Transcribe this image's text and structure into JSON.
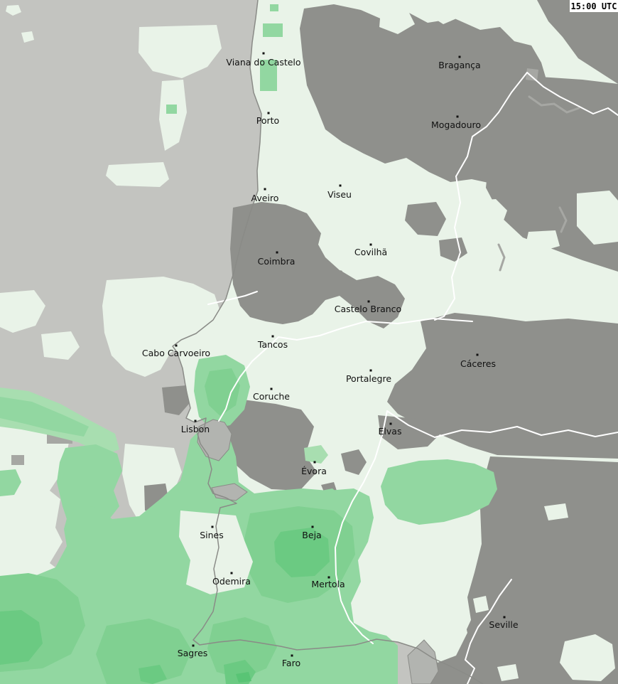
{
  "header": {
    "timestamp": "15:00 UTC"
  },
  "map": {
    "cities": [
      {
        "name": "Viana do Castelo",
        "dot": [
          371,
          75
        ],
        "label": [
          371,
          92
        ]
      },
      {
        "name": "Bragança",
        "dot": [
          647,
          80
        ],
        "label": [
          647,
          96
        ]
      },
      {
        "name": "Porto",
        "dot": [
          378,
          159
        ],
        "label": [
          377,
          174
        ]
      },
      {
        "name": "Mogadouro",
        "dot": [
          644,
          164
        ],
        "label": [
          642,
          180
        ]
      },
      {
        "name": "Aveiro",
        "dot": [
          373,
          266
        ],
        "label": [
          373,
          283
        ]
      },
      {
        "name": "Viseu",
        "dot": [
          479,
          261
        ],
        "label": [
          478,
          278
        ]
      },
      {
        "name": "Covilhã",
        "dot": [
          522,
          344
        ],
        "label": [
          522,
          359
        ]
      },
      {
        "name": "Coimbra",
        "dot": [
          390,
          355
        ],
        "label": [
          389,
          372
        ]
      },
      {
        "name": "Castelo Branco",
        "dot": [
          519,
          424
        ],
        "label": [
          518,
          439
        ]
      },
      {
        "name": "Cabo Carvoeiro",
        "dot": [
          248,
          486
        ],
        "label": [
          248,
          501
        ]
      },
      {
        "name": "Tancos",
        "dot": [
          384,
          473
        ],
        "label": [
          384,
          489
        ]
      },
      {
        "name": "Portalegre",
        "dot": [
          522,
          521
        ],
        "label": [
          519,
          537
        ]
      },
      {
        "name": "Cáceres",
        "dot": [
          672,
          499
        ],
        "label": [
          673,
          516
        ]
      },
      {
        "name": "Coruche",
        "dot": [
          382,
          547
        ],
        "label": [
          382,
          562
        ]
      },
      {
        "name": "Lisbon",
        "dot": [
          275,
          592
        ],
        "label": [
          275,
          608
        ]
      },
      {
        "name": "Elvas",
        "dot": [
          550,
          596
        ],
        "label": [
          549,
          611
        ]
      },
      {
        "name": "Évora",
        "dot": [
          443,
          650
        ],
        "label": [
          442,
          667
        ]
      },
      {
        "name": "Sines",
        "dot": [
          299,
          741
        ],
        "label": [
          298,
          757
        ]
      },
      {
        "name": "Beja",
        "dot": [
          440,
          741
        ],
        "label": [
          439,
          757
        ]
      },
      {
        "name": "Odemira",
        "dot": [
          326,
          806
        ],
        "label": [
          326,
          822
        ]
      },
      {
        "name": "Mertola",
        "dot": [
          463,
          812
        ],
        "label": [
          462,
          826
        ]
      },
      {
        "name": "Seville",
        "dot": [
          710,
          868
        ],
        "label": [
          709,
          883
        ]
      },
      {
        "name": "Sagres",
        "dot": [
          272,
          908
        ],
        "label": [
          271,
          923
        ]
      },
      {
        "name": "Faro",
        "dot": [
          411,
          922
        ],
        "label": [
          410,
          937
        ]
      }
    ],
    "colors": {
      "sea": "#c3c4c0",
      "clear": "#e9f3e8",
      "cloud": "#8f908c",
      "cloud_light": "#a6a7a3",
      "water": "#b2b4b0",
      "rain1": "#a8deb0",
      "rain2": "#92d7a1",
      "rain3": "#80d091",
      "rain4": "#6bca82",
      "rain5": "#59c475",
      "river": "#ffffff",
      "coast": "#8a8b87",
      "label": "#111111",
      "badge_bg": "#ffffff",
      "badge_fg": "#000000"
    }
  }
}
